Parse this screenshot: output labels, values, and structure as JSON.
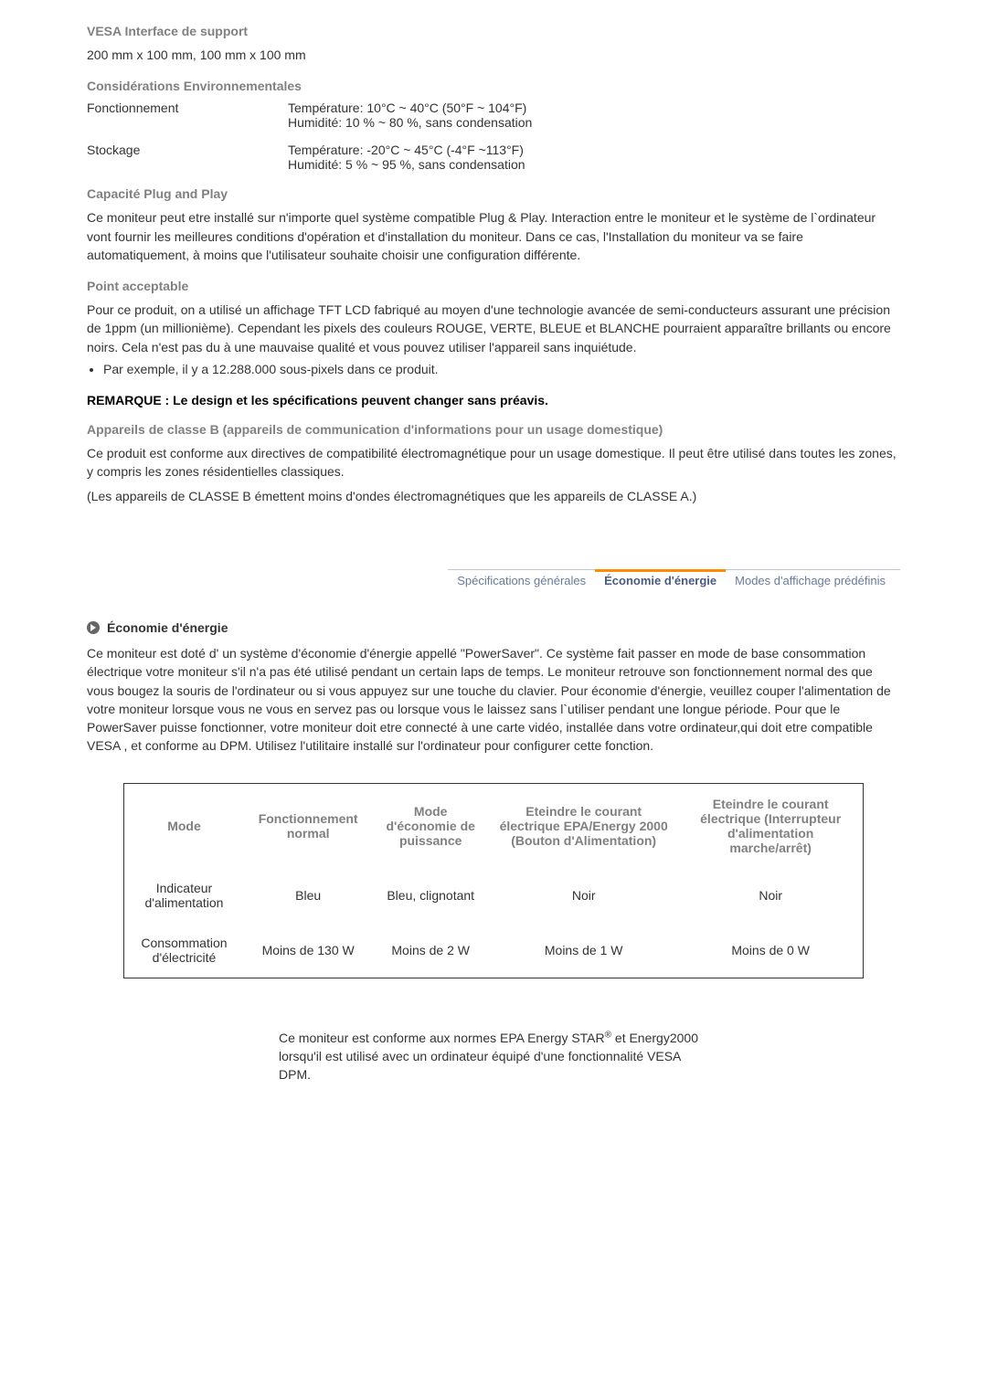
{
  "sections": {
    "vesa_title": "VESA Interface de support",
    "vesa_body": "200 mm x 100 mm, 100 mm x 100 mm",
    "env_title": "Considérations Environnementales",
    "env_rows": [
      {
        "label": "Fonctionnement",
        "line1": "Température: 10°C ~ 40°C (50°F ~ 104°F)",
        "line2": "Humidité: 10 % ~ 80 %, sans condensation"
      },
      {
        "label": "Stockage",
        "line1": "Température: -20°C ~ 45°C (-4°F ~113°F)",
        "line2": "Humidité: 5 % ~ 95 %, sans condensation"
      }
    ],
    "plug_title": "Capacité Plug and Play",
    "plug_body": "Ce moniteur peut etre installé sur n'importe quel système compatible Plug & Play. Interaction entre le moniteur et le système de l`ordinateur vont fournir les meilleures conditions d'opération et d'installation du moniteur. Dans ce cas, l'Installation du moniteur va se faire automatiquement, à moins que l'utilisateur souhaite choisir une configuration différente.",
    "point_title": "Point acceptable",
    "point_body": "Pour ce produit, on a utilisé un affichage TFT LCD fabriqué au moyen d'une technologie avancée de semi-conducteurs assurant une précision de 1ppm (un millionième). Cependant les pixels des couleurs ROUGE, VERTE, BLEUE et BLANCHE pourraient apparaître brillants ou encore noirs. Cela n'est pas du à une mauvaise qualité et vous pouvez utiliser l'appareil sans inquiétude.",
    "point_bullet": "Par exemple, il y a 12.288.000 sous-pixels dans ce produit.",
    "remarque": "REMARQUE : Le design et les spécifications peuvent changer sans préavis.",
    "class_b_title": "Appareils de classe B (appareils de communication d'informations pour un usage domestique)",
    "class_b_body1": "Ce produit est conforme aux directives de compatibilité électromagnétique pour un usage domestique. Il peut être utilisé dans toutes les zones, y compris les zones résidentielles classiques.",
    "class_b_body2": "(Les appareils de CLASSE B émettent moins d'ondes électromagnétiques que les appareils de CLASSE A.)"
  },
  "tabs": {
    "t1": "Spécifications générales",
    "t2": "Économie d'énergie",
    "t3": "Modes d'affichage prédéfinis"
  },
  "eco": {
    "heading": "Économie d'énergie",
    "body": "Ce moniteur est doté d' un système d'économie d'énergie appellé \"PowerSaver\". Ce système fait passer en mode de base consommation électrique votre moniteur s'il n'a pas été utilisé pendant un certain laps de temps. Le moniteur retrouve son fonctionnement normal des que vous bougez la souris de l'ordinateur ou si vous appuyez sur une touche du clavier. Pour économie d'énergie, veuillez couper l'alimentation de votre moniteur lorsque vous ne vous en servez pas ou lorsque vous le laissez sans l`utiliser pendant une longue période. Pour que le PowerSaver puisse fonctionner, votre moniteur doit etre connecté à une carte vidéo, installée dans votre ordinateur,qui doit etre compatible VESA , et conforme au DPM. Utilisez l'utilitaire installé sur l'ordinateur pour configurer cette fonction."
  },
  "table": {
    "headers": {
      "c1": "Mode",
      "c2": "Fonctionnement normal",
      "c3": "Mode d'économie de puissance",
      "c4": "Eteindre le courant électrique EPA/Energy 2000 (Bouton d'Alimentation)",
      "c5": "Eteindre le courant électrique (Interrupteur d'alimentation marche/arrêt)"
    },
    "rows": [
      {
        "c1": "Indicateur d'alimentation",
        "c2": "Bleu",
        "c3": "Bleu, clignotant",
        "c4": "Noir",
        "c5": "Noir"
      },
      {
        "c1": "Consommation d'électricité",
        "c2": "Moins de 130 W",
        "c3": "Moins de 2 W",
        "c4": "Moins de 1 W",
        "c5": "Moins de 0 W"
      }
    ]
  },
  "footnote": {
    "pre": "Ce moniteur est conforme aux normes EPA Energy STAR",
    "sup": "®",
    "post": " et Energy2000 lorsqu'il est utilisé avec un ordinateur équipé d'une fonctionnalité VESA DPM."
  },
  "style": {
    "body_color": "#333333",
    "gray_color": "#808080",
    "tab_color": "#6a7a99",
    "tab_active_color": "#4a5b80",
    "accent_color": "#ff8c00"
  }
}
